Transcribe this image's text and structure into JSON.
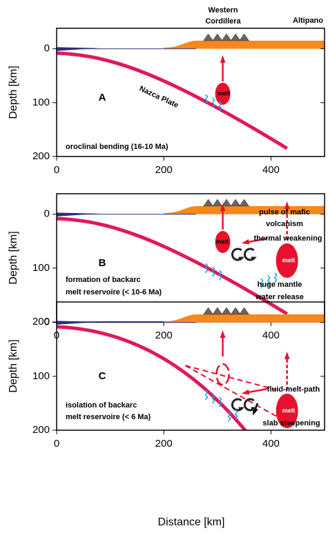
{
  "header": {
    "western": "Western",
    "cordillera": "Cordillera",
    "altipano": "Altipano"
  },
  "x_axis": {
    "label": "Distance [km]",
    "lim": [
      0,
      500
    ],
    "ticks": [
      0,
      200,
      400
    ]
  },
  "y_axis": {
    "label": "Depth [km]",
    "lim": [
      200,
      -38
    ],
    "ticks": [
      0,
      100,
      200
    ]
  },
  "panels": [
    {
      "letter": "A",
      "annotations": [
        "Nazca Plate",
        "melt",
        "oroclinal bending (16-10 Ma)"
      ]
    },
    {
      "letter": "B",
      "annotations": [
        "melt",
        "melt",
        "thermal weakening",
        "pulse of mafic",
        "volcanism",
        "formation of backarc",
        "melt reservoire (< 10-6 Ma)",
        "huge mantle",
        "water release"
      ]
    },
    {
      "letter": "C",
      "annotations": [
        "fluid-melt-path",
        "melt",
        "isolation of backarc",
        "melt reservoire (< 6 Ma)",
        "slab steepening"
      ]
    }
  ]
}
